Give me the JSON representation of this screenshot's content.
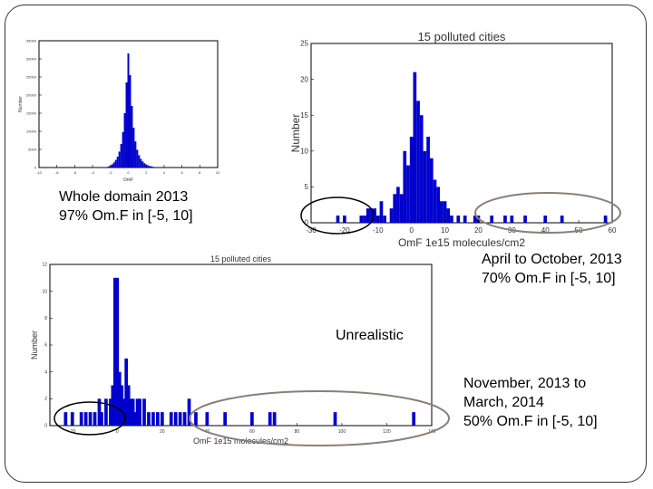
{
  "charts": [
    {
      "type": "histogram",
      "title": "",
      "xlabel": "OmF",
      "ylabel": "Number",
      "xlim": [
        -10,
        10
      ],
      "ylim": [
        0,
        35000
      ],
      "x_ticks": [
        "-10",
        "-8",
        "-6",
        "-4",
        "-2",
        "0",
        "2",
        "4",
        "6",
        "8",
        "10"
      ],
      "y_ticks": [
        "0",
        "5000",
        "10000",
        "15000",
        "20000",
        "25000",
        "30000",
        "35000"
      ],
      "bins": [
        {
          "x": -2.4,
          "y": 150
        },
        {
          "x": -2.2,
          "y": 300
        },
        {
          "x": -2.0,
          "y": 550
        },
        {
          "x": -1.8,
          "y": 900
        },
        {
          "x": -1.6,
          "y": 1400
        },
        {
          "x": -1.4,
          "y": 2100
        },
        {
          "x": -1.2,
          "y": 3000
        },
        {
          "x": -1.0,
          "y": 4400
        },
        {
          "x": -0.8,
          "y": 6500
        },
        {
          "x": -0.6,
          "y": 9800
        },
        {
          "x": -0.4,
          "y": 15000
        },
        {
          "x": -0.2,
          "y": 23500
        },
        {
          "x": 0.0,
          "y": 31500
        },
        {
          "x": 0.2,
          "y": 25500
        },
        {
          "x": 0.4,
          "y": 17000
        },
        {
          "x": 0.6,
          "y": 11000
        },
        {
          "x": 0.8,
          "y": 7200
        },
        {
          "x": 1.0,
          "y": 4900
        },
        {
          "x": 1.2,
          "y": 3400
        },
        {
          "x": 1.4,
          "y": 2400
        },
        {
          "x": 1.6,
          "y": 1700
        },
        {
          "x": 1.8,
          "y": 1200
        },
        {
          "x": 2.0,
          "y": 850
        },
        {
          "x": 2.2,
          "y": 600
        },
        {
          "x": 2.4,
          "y": 420
        },
        {
          "x": 2.6,
          "y": 300
        },
        {
          "x": 2.8,
          "y": 200
        },
        {
          "x": 3.0,
          "y": 130
        }
      ],
      "color": "#0000cc"
    },
    {
      "type": "histogram",
      "title": "15 polluted cities",
      "xlabel": "OmF 1e15 molecules/cm2",
      "ylabel": "Number",
      "xlim": [
        -30,
        60
      ],
      "ylim": [
        0,
        25
      ],
      "x_ticks": [
        "-30",
        "-20",
        "-10",
        "0",
        "10",
        "20",
        "30",
        "40",
        "50",
        "60"
      ],
      "y_ticks": [
        "0",
        "5",
        "10",
        "15",
        "20",
        "25"
      ],
      "bins": [
        {
          "x": -22,
          "y": 1
        },
        {
          "x": -20,
          "y": 1
        },
        {
          "x": -15,
          "y": 1
        },
        {
          "x": -14,
          "y": 1
        },
        {
          "x": -13,
          "y": 2
        },
        {
          "x": -12,
          "y": 2
        },
        {
          "x": -11,
          "y": 2
        },
        {
          "x": -10,
          "y": 1
        },
        {
          "x": -9,
          "y": 3
        },
        {
          "x": -8,
          "y": 1
        },
        {
          "x": -6,
          "y": 2
        },
        {
          "x": -5,
          "y": 4
        },
        {
          "x": -4,
          "y": 5
        },
        {
          "x": -3,
          "y": 4
        },
        {
          "x": -2,
          "y": 10
        },
        {
          "x": -1,
          "y": 8
        },
        {
          "x": 0,
          "y": 12
        },
        {
          "x": 1,
          "y": 21
        },
        {
          "x": 2,
          "y": 17
        },
        {
          "x": 3,
          "y": 15
        },
        {
          "x": 4,
          "y": 10
        },
        {
          "x": 5,
          "y": 12
        },
        {
          "x": 6,
          "y": 9
        },
        {
          "x": 7,
          "y": 6
        },
        {
          "x": 8,
          "y": 5
        },
        {
          "x": 9,
          "y": 3
        },
        {
          "x": 10,
          "y": 3
        },
        {
          "x": 11,
          "y": 2
        },
        {
          "x": 12,
          "y": 1
        },
        {
          "x": 14,
          "y": 1
        },
        {
          "x": 16,
          "y": 1
        },
        {
          "x": 19,
          "y": 1
        },
        {
          "x": 20,
          "y": 1
        },
        {
          "x": 24,
          "y": 1
        },
        {
          "x": 28,
          "y": 1
        },
        {
          "x": 30,
          "y": 1
        },
        {
          "x": 34,
          "y": 1
        },
        {
          "x": 40,
          "y": 1
        },
        {
          "x": 45,
          "y": 1
        },
        {
          "x": 58,
          "y": 1
        }
      ],
      "color": "#0000cc"
    },
    {
      "type": "histogram",
      "title": "15 polluted cities",
      "xlabel": "OmF 1e15 molecules/cm2",
      "ylabel": "Number",
      "xlim": [
        -30,
        140
      ],
      "ylim": [
        0,
        12
      ],
      "x_ticks": [
        "-20",
        "0",
        "20",
        "40",
        "60",
        "80",
        "100",
        "120",
        "140"
      ],
      "y_ticks": [
        "0",
        "2",
        "4",
        "6",
        "8",
        "10",
        "12"
      ],
      "bins": [
        {
          "x": -23,
          "y": 1
        },
        {
          "x": -20,
          "y": 1
        },
        {
          "x": -16,
          "y": 1
        },
        {
          "x": -14,
          "y": 1
        },
        {
          "x": -12,
          "y": 1
        },
        {
          "x": -10,
          "y": 1
        },
        {
          "x": -8,
          "y": 2
        },
        {
          "x": -7,
          "y": 1
        },
        {
          "x": -5,
          "y": 2
        },
        {
          "x": -3,
          "y": 2
        },
        {
          "x": -2,
          "y": 3
        },
        {
          "x": -1,
          "y": 11
        },
        {
          "x": 0,
          "y": 11
        },
        {
          "x": 1,
          "y": 4
        },
        {
          "x": 2,
          "y": 3
        },
        {
          "x": 3,
          "y": 2
        },
        {
          "x": 4,
          "y": 5
        },
        {
          "x": 5,
          "y": 3
        },
        {
          "x": 6,
          "y": 2
        },
        {
          "x": 7,
          "y": 2
        },
        {
          "x": 8,
          "y": 1
        },
        {
          "x": 9,
          "y": 2
        },
        {
          "x": 10,
          "y": 2
        },
        {
          "x": 12,
          "y": 2
        },
        {
          "x": 14,
          "y": 1
        },
        {
          "x": 16,
          "y": 1
        },
        {
          "x": 18,
          "y": 1
        },
        {
          "x": 20,
          "y": 1
        },
        {
          "x": 24,
          "y": 1
        },
        {
          "x": 26,
          "y": 1
        },
        {
          "x": 28,
          "y": 1
        },
        {
          "x": 30,
          "y": 1
        },
        {
          "x": 32,
          "y": 2
        },
        {
          "x": 35,
          "y": 1
        },
        {
          "x": 40,
          "y": 1
        },
        {
          "x": 48,
          "y": 1
        },
        {
          "x": 60,
          "y": 1
        },
        {
          "x": 68,
          "y": 1
        },
        {
          "x": 70,
          "y": 1
        },
        {
          "x": 97,
          "y": 1
        },
        {
          "x": 132,
          "y": 1
        }
      ],
      "color": "#0000cc"
    }
  ],
  "captions": {
    "whole_domain_line1": "Whole domain 2013",
    "whole_domain_line2": "97% Om.F in [-5, 10]",
    "april_line1": "April to October, 2013",
    "april_line2": "70% Om.F in [-5, 10]",
    "unrealistic": "Unrealistic",
    "november_line1": "November, 2013 to",
    "november_line2": "March, 2014",
    "november_line3": "50% Om.F in [-5, 10]"
  },
  "colors": {
    "bar": "#0000cc",
    "negative_outlier_ellipse": "#000000",
    "positive_outlier_ellipse": "#8a7f77"
  }
}
